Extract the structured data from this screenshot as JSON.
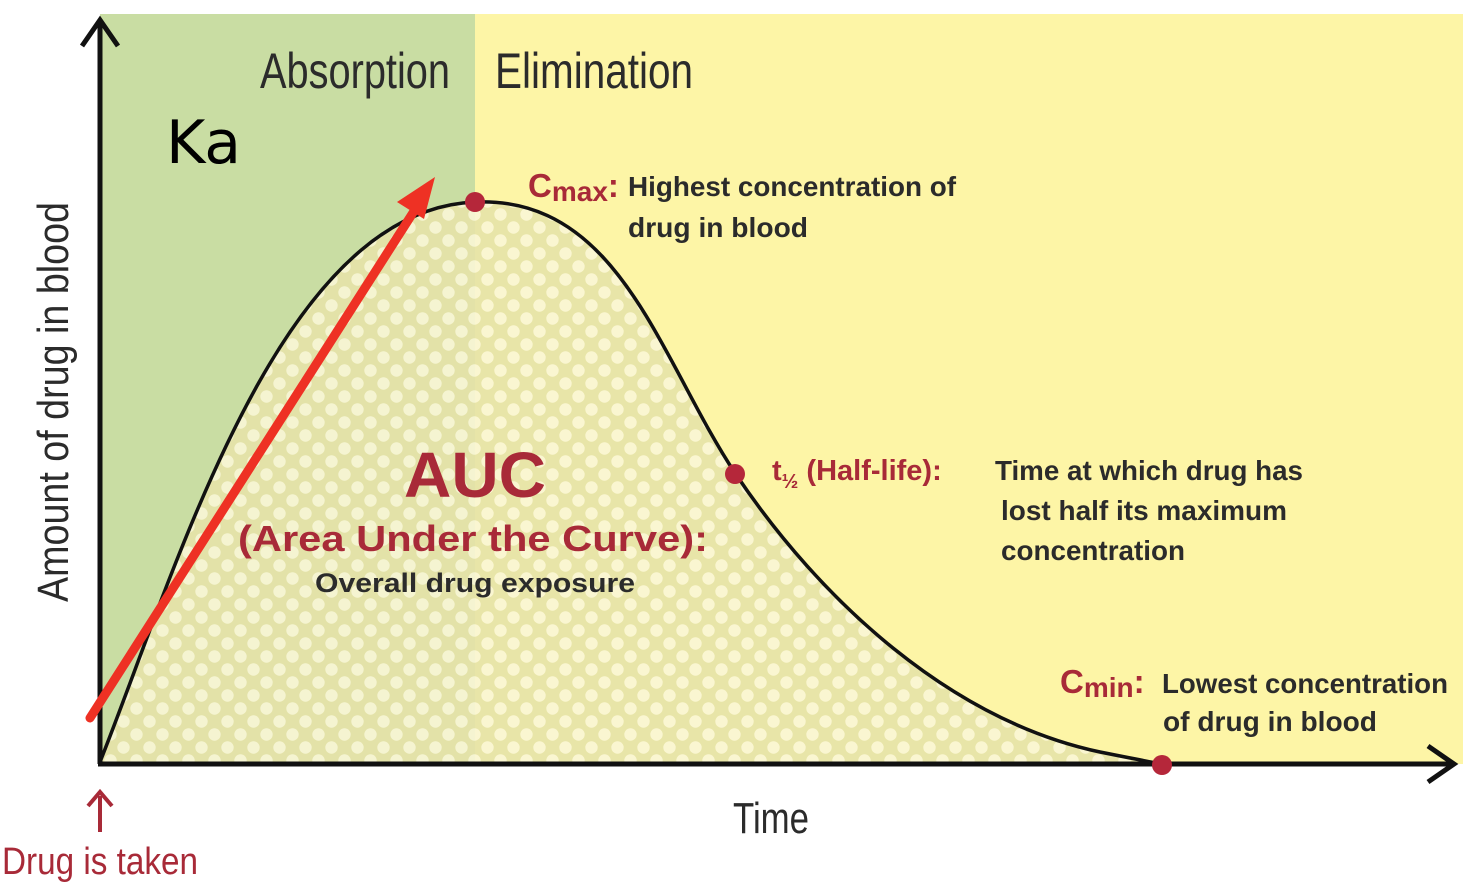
{
  "phases": {
    "absorption": "Absorption",
    "elimination": "Elimination",
    "ka": "Ka"
  },
  "axes": {
    "y_label": "Amount of drug in blood",
    "x_label": "Time"
  },
  "start": {
    "label": "Drug is taken"
  },
  "cmax": {
    "symbol": "C",
    "subscript": "max",
    "colon": ":",
    "line1": "Highest concentration of",
    "line2": "drug in blood"
  },
  "auc": {
    "title": "AUC",
    "subtitle": "(Area Under the Curve):",
    "description": "Overall drug exposure"
  },
  "half_life": {
    "symbol": "t",
    "subscript": "½",
    "term": " (Half-life):",
    "line1": "Time at which drug has",
    "line2": "lost half its maximum",
    "line3": "concentration"
  },
  "cmin": {
    "symbol": "C",
    "subscript": "min",
    "colon": ":",
    "line1": "Lowest concentration",
    "line2": "of drug in blood"
  },
  "colors": {
    "absorption_bg": "#c9dda3",
    "elimination_bg": "#fdf5a6",
    "point": "#b5273a",
    "label_red": "#a82a38",
    "arrow": "#ee3124",
    "curve": "#111111"
  }
}
